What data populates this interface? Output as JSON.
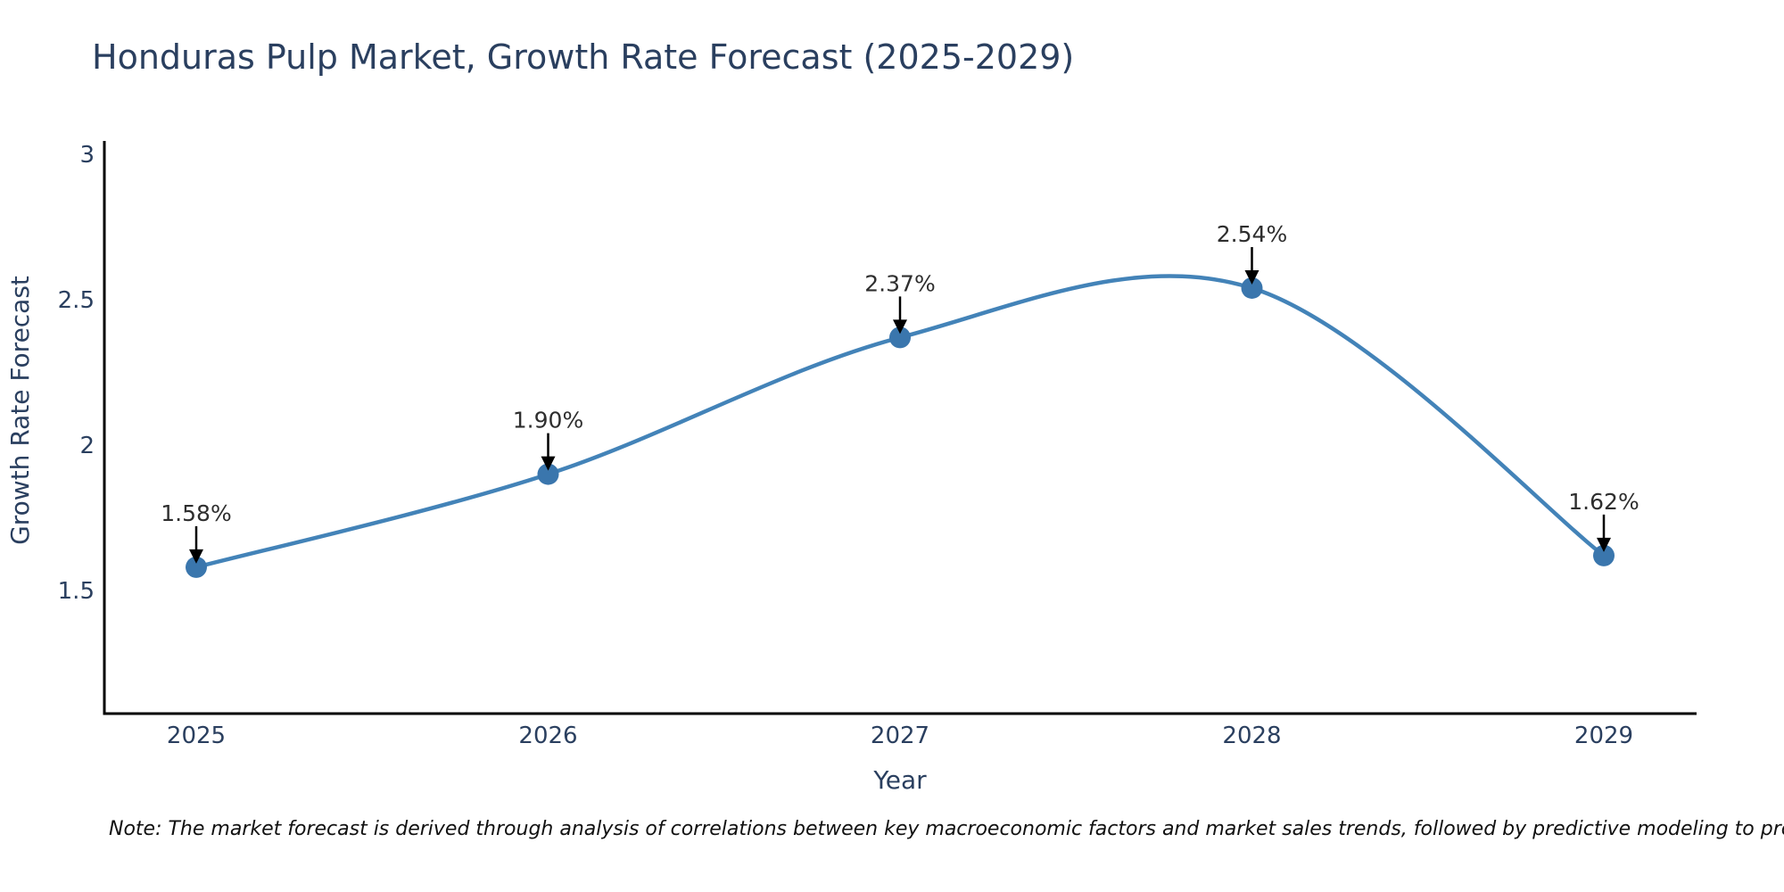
{
  "title": {
    "text": "Honduras Pulp Market, Growth Rate Forecast (2025-2029)"
  },
  "note": {
    "text": "Note: The market forecast is derived through analysis of correlations between key macroeconomic factors and market sales trends, followed by predictive modeling to project future sales"
  },
  "chart_data": {
    "type": "line",
    "line_shape": "spline",
    "title": "Honduras Pulp Market, Growth Rate Forecast (2025-2029)",
    "xlabel": "Year",
    "ylabel": "Growth Rate Forecast",
    "categories": [
      "2025",
      "2026",
      "2027",
      "2028",
      "2029"
    ],
    "values": [
      1.58,
      1.9,
      2.37,
      2.54,
      1.62
    ],
    "point_labels": [
      "1.58%",
      "1.90%",
      "2.37%",
      "2.54%",
      "1.62%"
    ],
    "yticks": [
      1.5,
      2,
      2.5,
      3
    ],
    "ytick_labels": [
      "1.5",
      "2",
      "2.5",
      "3"
    ],
    "ylim": [
      1.08,
      3.05
    ],
    "grid": false,
    "legend": "none",
    "colors": {
      "line": "#4383b8",
      "marker": "#3a76ad",
      "axis": "#000000",
      "axis_text": "#2a3f5f",
      "annotation_text": "#2e2e2e",
      "arrow": "#000000"
    }
  }
}
